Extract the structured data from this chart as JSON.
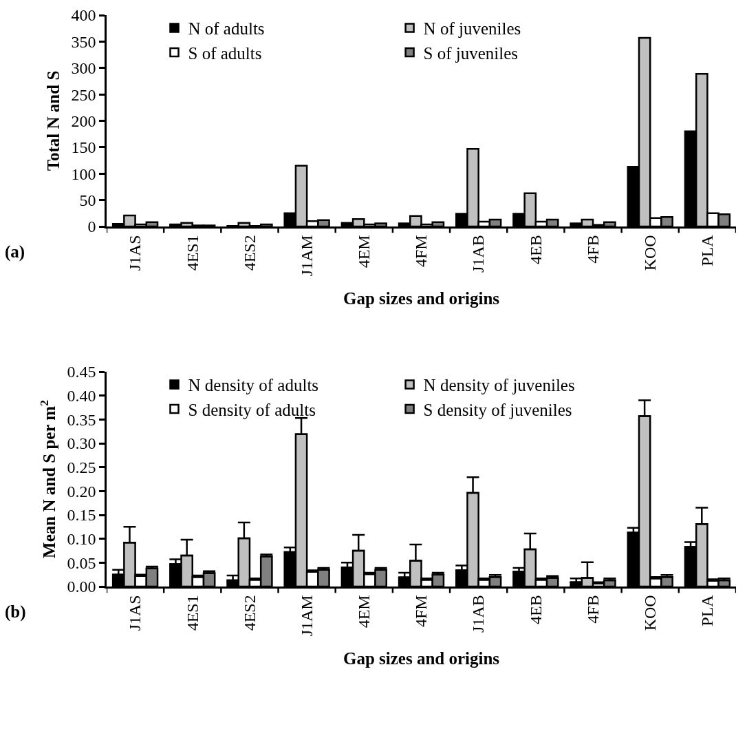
{
  "chart_data": [
    {
      "type": "bar",
      "xlabel": "Gap sizes and origins",
      "ylabel": "Total N and S",
      "annotations": [
        "(a)"
      ],
      "categories": [
        "J1AS",
        "4ES1",
        "4ES2",
        "J1AM",
        "4EM",
        "4FM",
        "J1AB",
        "4EB",
        "4FB",
        "KOO",
        "PLA"
      ],
      "series": [
        {
          "name": "N of adults",
          "color": "#000000",
          "values": [
            5,
            4,
            1,
            25,
            7,
            6,
            24,
            24,
            6,
            113,
            180
          ]
        },
        {
          "name": "N of juveniles",
          "color": "#c0c0c0",
          "values": [
            21,
            7,
            7,
            115,
            14,
            20,
            147,
            63,
            13,
            357,
            289
          ]
        },
        {
          "name": "S of adults",
          "color": "#ffffff",
          "values": [
            4,
            2,
            1,
            10,
            4,
            4,
            9,
            9,
            3,
            16,
            25
          ]
        },
        {
          "name": "S of juveniles",
          "color": "#808080",
          "values": [
            8,
            2,
            4,
            12,
            6,
            8,
            13,
            13,
            8,
            18,
            23
          ]
        }
      ],
      "ylim": [
        0,
        400
      ],
      "yticks": [
        0,
        50,
        100,
        150,
        200,
        250,
        300,
        350,
        400
      ],
      "grid": false,
      "legend": "top"
    },
    {
      "type": "bar",
      "xlabel": "Gap sizes and origins",
      "ylabel": "Mean N and S per m$^{2}$",
      "annotations": [
        "(b)"
      ],
      "categories": [
        "J1AS",
        "4ES1",
        "4ES2",
        "J1AM",
        "4EM",
        "4FM",
        "J1AB",
        "4EB",
        "4FB",
        "KOO",
        "PLA"
      ],
      "series": [
        {
          "name": "N density of adults",
          "color": "#000000",
          "values": [
            0.025,
            0.047,
            0.013,
            0.072,
            0.04,
            0.019,
            0.034,
            0.031,
            0.009,
            0.113,
            0.083
          ],
          "errors": [
            [
              0.025,
              0.035
            ],
            [
              0.047,
              0.057
            ],
            [
              0.013,
              0.023
            ],
            [
              0.072,
              0.082
            ],
            [
              0.04,
              0.05
            ],
            [
              0.019,
              0.029
            ],
            [
              0.034,
              0.044
            ],
            [
              0.031,
              0.039
            ],
            [
              0.009,
              0.017
            ],
            [
              0.113,
              0.123
            ],
            [
              0.083,
              0.093
            ]
          ]
        },
        {
          "name": "N density of juveniles",
          "color": "#c0c0c0",
          "values": [
            0.092,
            0.065,
            0.101,
            0.319,
            0.075,
            0.054,
            0.196,
            0.078,
            0.018,
            0.357,
            0.131
          ],
          "errors": [
            [
              0.092,
              0.125
            ],
            [
              0.065,
              0.098
            ],
            [
              0.101,
              0.134
            ],
            [
              0.319,
              0.353
            ],
            [
              0.075,
              0.108
            ],
            [
              0.054,
              0.088
            ],
            [
              0.196,
              0.229
            ],
            [
              0.078,
              0.111
            ],
            [
              0.018,
              0.051
            ],
            [
              0.357,
              0.39
            ],
            [
              0.131,
              0.165
            ]
          ]
        },
        {
          "name": "S density of adults",
          "color": "#ffffff",
          "values": [
            0.022,
            0.02,
            0.014,
            0.031,
            0.026,
            0.014,
            0.014,
            0.014,
            0.006,
            0.017,
            0.012
          ],
          "errors": [
            [
              0.022,
              0.025
            ],
            [
              0.02,
              0.023
            ],
            [
              0.014,
              0.017
            ],
            [
              0.031,
              0.034
            ],
            [
              0.026,
              0.029
            ],
            [
              0.014,
              0.017
            ],
            [
              0.014,
              0.017
            ],
            [
              0.014,
              0.017
            ],
            [
              0.006,
              0.009
            ],
            [
              0.017,
              0.02
            ],
            [
              0.012,
              0.015
            ]
          ]
        },
        {
          "name": "S density of juveniles",
          "color": "#808080",
          "values": [
            0.038,
            0.028,
            0.063,
            0.035,
            0.035,
            0.025,
            0.02,
            0.018,
            0.013,
            0.02,
            0.013
          ],
          "errors": [
            [
              0.038,
              0.042
            ],
            [
              0.028,
              0.032
            ],
            [
              0.063,
              0.067
            ],
            [
              0.035,
              0.039
            ],
            [
              0.035,
              0.039
            ],
            [
              0.025,
              0.029
            ],
            [
              0.02,
              0.024
            ],
            [
              0.018,
              0.022
            ],
            [
              0.013,
              0.017
            ],
            [
              0.02,
              0.024
            ],
            [
              0.013,
              0.017
            ]
          ]
        }
      ],
      "ylim": [
        0,
        0.45
      ],
      "yticks": [
        {
          "value": 0,
          "label": "0.00"
        },
        {
          "value": 0.05,
          "label": "0.05"
        },
        {
          "value": 0.1,
          "label": "0.10"
        },
        {
          "value": 0.15,
          "label": "0.15"
        },
        {
          "value": 0.2,
          "label": "0.20"
        },
        {
          "value": 0.25,
          "label": "0.25"
        },
        {
          "value": 0.3,
          "label": "0.30"
        },
        {
          "value": 0.35,
          "label": "0.35"
        },
        {
          "value": 0.4,
          "label": "0.40"
        },
        {
          "value": 0.45,
          "label": "0.45"
        }
      ],
      "grid": false,
      "legend": "top"
    }
  ]
}
